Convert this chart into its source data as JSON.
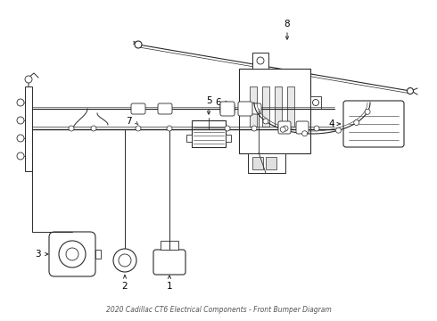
{
  "title": "2020 Cadillac CT6 Electrical Components - Front Bumper Diagram",
  "bg_color": "#ffffff",
  "line_color": "#2a2a2a",
  "text_color": "#000000",
  "fig_width": 4.9,
  "fig_height": 3.6,
  "dpi": 100
}
